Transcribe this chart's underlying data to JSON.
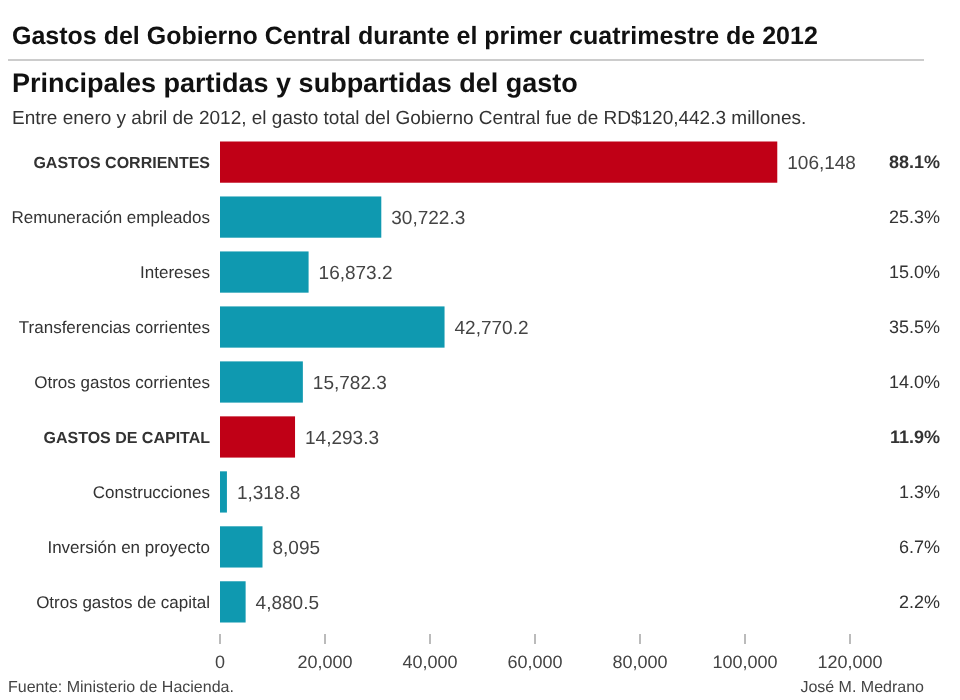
{
  "chart_data": {
    "type": "bar",
    "orientation": "horizontal",
    "title": "Gastos del Gobierno Central durante el primer cuatrimestre de 2012",
    "subtitle": "Principales partidas y subpartidas del gasto",
    "categories": [
      "GASTOS CORRIENTES",
      "Remuneración empleados",
      "Intereses",
      "Transferencias corrientes",
      "Otros gastos corrientes",
      "GASTOS DE CAPITAL",
      "Construcciones",
      "Inversión en proyecto",
      "Otros gastos de capital"
    ],
    "values": [
      106148,
      30722.3,
      16873.2,
      42770.2,
      15782.3,
      14293.3,
      1318.8,
      8095,
      4880.5
    ],
    "colors": [
      "#c00016",
      "#0f99b0",
      "#0f99b0",
      "#0f99b0",
      "#0f99b0",
      "#c00016",
      "#0f99b0",
      "#0f99b0",
      "#0f99b0"
    ],
    "value_labels": [
      "106,148",
      "30,722.3",
      "16,873.2",
      "42,770.2",
      "15,782.3",
      "14,293.3",
      "1,318.8",
      "8,095",
      "4,880.5"
    ],
    "xlim": [
      0,
      120000
    ],
    "xticks": [
      0,
      {
        "value": 20000,
        "label": "20,000"
      },
      {
        "value": 40000,
        "label": "40,000"
      },
      {
        "value": 60000,
        "label": "60,000"
      },
      {
        "value": 80000,
        "label": "80,000"
      },
      {
        "value": 100000,
        "label": "100,000"
      },
      {
        "value": 120000,
        "label": "120,000"
      }
    ],
    "grid": false,
    "annotations": [
      "Entre enero y abril de 2012, el gasto total del Gobierno Central fue de RD$120,442.3 millones.",
      "Fuente: Ministerio de Hacienda.",
      "José M. Medrano",
      "88.1%",
      "25.3%",
      "15.0%",
      "35.5%",
      "14.0%",
      "11.9%",
      "1.3%",
      "6.7%",
      "2.2%"
    ]
  }
}
